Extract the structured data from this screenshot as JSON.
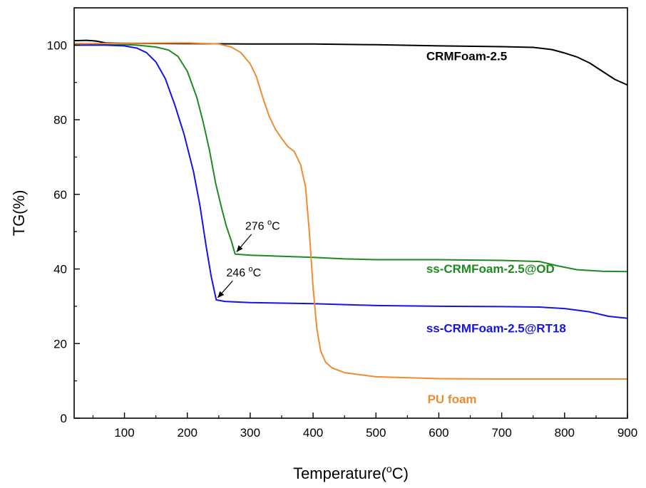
{
  "chart_data": {
    "type": "line",
    "xlabel": "Temperature(°C)",
    "ylabel": "TG(%)",
    "xlim": [
      20,
      900
    ],
    "ylim": [
      0,
      110
    ],
    "x_ticks": [
      100,
      200,
      300,
      400,
      500,
      600,
      700,
      800,
      900
    ],
    "y_ticks": [
      0,
      20,
      40,
      60,
      80,
      100
    ],
    "grid": false,
    "series": [
      {
        "name": "CRMFoam-2.5",
        "color": "#000000",
        "label_pos": [
          580,
          96
        ],
        "points": [
          [
            20,
            101.2
          ],
          [
            40,
            101.3
          ],
          [
            55,
            101.1
          ],
          [
            70,
            100.6
          ],
          [
            100,
            100.5
          ],
          [
            200,
            100.4
          ],
          [
            300,
            100.3
          ],
          [
            400,
            100.3
          ],
          [
            500,
            100.1
          ],
          [
            600,
            99.8
          ],
          [
            700,
            99.6
          ],
          [
            750,
            99.4
          ],
          [
            780,
            98.8
          ],
          [
            800,
            97.9
          ],
          [
            820,
            96.8
          ],
          [
            840,
            95.2
          ],
          [
            860,
            93.0
          ],
          [
            880,
            90.8
          ],
          [
            900,
            89.3
          ]
        ]
      },
      {
        "name": "ss-CRMFoam-2.5@OD",
        "color": "#1f8a1f",
        "label_pos": [
          580,
          39
        ],
        "points": [
          [
            20,
            100.4
          ],
          [
            80,
            100.3
          ],
          [
            120,
            100.0
          ],
          [
            150,
            99.5
          ],
          [
            170,
            98.7
          ],
          [
            185,
            97.0
          ],
          [
            200,
            93.0
          ],
          [
            215,
            86.0
          ],
          [
            225,
            79.5
          ],
          [
            235,
            72.0
          ],
          [
            245,
            63.0
          ],
          [
            255,
            56.0
          ],
          [
            262,
            51.5
          ],
          [
            270,
            47.5
          ],
          [
            276,
            44.0
          ],
          [
            300,
            43.7
          ],
          [
            350,
            43.4
          ],
          [
            400,
            43.1
          ],
          [
            450,
            42.7
          ],
          [
            500,
            42.5
          ],
          [
            600,
            42.5
          ],
          [
            700,
            42.3
          ],
          [
            760,
            42.0
          ],
          [
            790,
            40.8
          ],
          [
            820,
            39.8
          ],
          [
            860,
            39.4
          ],
          [
            900,
            39.3
          ]
        ]
      },
      {
        "name": "ss-CRMFoam-2.5@RT18",
        "color": "#1414e6",
        "label_pos": [
          580,
          23
        ],
        "points": [
          [
            20,
            100.0
          ],
          [
            70,
            100.0
          ],
          [
            100,
            99.8
          ],
          [
            120,
            99.2
          ],
          [
            135,
            98.0
          ],
          [
            150,
            95.5
          ],
          [
            165,
            91.0
          ],
          [
            180,
            84.0
          ],
          [
            195,
            76.0
          ],
          [
            210,
            66.0
          ],
          [
            220,
            57.0
          ],
          [
            230,
            46.0
          ],
          [
            238,
            38.0
          ],
          [
            246,
            31.7
          ],
          [
            260,
            31.3
          ],
          [
            300,
            31.0
          ],
          [
            400,
            30.7
          ],
          [
            500,
            30.2
          ],
          [
            600,
            30.0
          ],
          [
            700,
            29.9
          ],
          [
            760,
            29.8
          ],
          [
            800,
            29.4
          ],
          [
            840,
            28.5
          ],
          [
            870,
            27.3
          ],
          [
            900,
            26.8
          ]
        ]
      },
      {
        "name": "PU foam",
        "color": "#ef8b30",
        "label_pos": [
          582,
          4
        ],
        "points": [
          [
            20,
            100.4
          ],
          [
            100,
            100.5
          ],
          [
            200,
            100.6
          ],
          [
            250,
            100.3
          ],
          [
            270,
            99.5
          ],
          [
            285,
            98.0
          ],
          [
            300,
            95.0
          ],
          [
            310,
            91.5
          ],
          [
            320,
            86.0
          ],
          [
            330,
            81.0
          ],
          [
            340,
            77.5
          ],
          [
            350,
            75.0
          ],
          [
            360,
            72.8
          ],
          [
            370,
            71.5
          ],
          [
            380,
            68.0
          ],
          [
            388,
            62.0
          ],
          [
            394,
            50.0
          ],
          [
            400,
            35.0
          ],
          [
            406,
            24.0
          ],
          [
            412,
            18.0
          ],
          [
            420,
            15.0
          ],
          [
            430,
            13.5
          ],
          [
            450,
            12.2
          ],
          [
            500,
            11.1
          ],
          [
            600,
            10.6
          ],
          [
            700,
            10.5
          ],
          [
            800,
            10.5
          ],
          [
            900,
            10.5
          ]
        ]
      }
    ],
    "annotations": [
      {
        "value": "276",
        "unit": "C",
        "degree": "o",
        "point": [
          276,
          44.0
        ],
        "text_at": [
          292,
          50.5
        ],
        "arrow_from": [
          302,
          49.3
        ]
      },
      {
        "value": "246",
        "unit": "C",
        "degree": "o",
        "point": [
          246,
          31.7
        ],
        "text_at": [
          262,
          38.0
        ],
        "arrow_from": [
          272,
          36.8
        ]
      }
    ]
  }
}
